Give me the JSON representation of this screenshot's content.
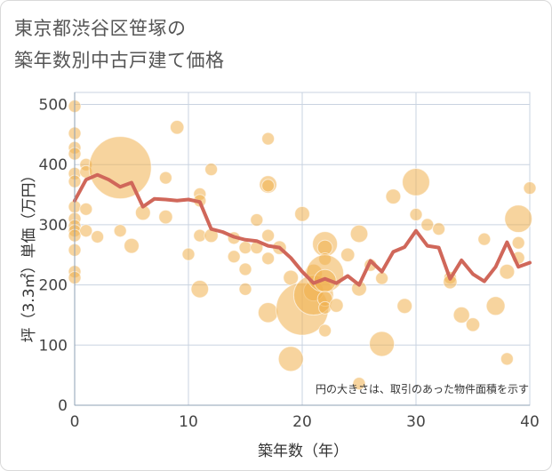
{
  "title": {
    "line1": "東京都渋谷区笹塚の",
    "line2": "築年数別中古戸建て価格"
  },
  "colors": {
    "bubble": "#f0b04f",
    "line": "#d0675a",
    "grid": "#c9d3e0",
    "axis": "#8ea0b5"
  },
  "chart_data": {
    "type": "scatter",
    "xlabel": "築年数（年）",
    "ylabel": "坪（3.3㎡）単価（万円）",
    "xlim": [
      0,
      40
    ],
    "ylim": [
      0,
      520
    ],
    "xticks": [
      0,
      10,
      20,
      30,
      40
    ],
    "yticks": [
      0,
      100,
      200,
      300,
      400,
      500
    ],
    "grid": true,
    "note": "円の大きさは、取引のあった物件面積を示す",
    "series": [
      {
        "kind": "bubble",
        "points": [
          {
            "x": 0,
            "y": 497,
            "s": 1
          },
          {
            "x": 0,
            "y": 452,
            "s": 1
          },
          {
            "x": 0,
            "y": 428,
            "s": 1
          },
          {
            "x": 0,
            "y": 418,
            "s": 1
          },
          {
            "x": 0,
            "y": 385,
            "s": 1
          },
          {
            "x": 0,
            "y": 372,
            "s": 1
          },
          {
            "x": 0,
            "y": 330,
            "s": 1
          },
          {
            "x": 0,
            "y": 310,
            "s": 1
          },
          {
            "x": 0,
            "y": 298,
            "s": 1
          },
          {
            "x": 0,
            "y": 290,
            "s": 1
          },
          {
            "x": 0,
            "y": 282,
            "s": 1
          },
          {
            "x": 0,
            "y": 258,
            "s": 1
          },
          {
            "x": 0,
            "y": 222,
            "s": 1
          },
          {
            "x": 0,
            "y": 212,
            "s": 1
          },
          {
            "x": 1,
            "y": 400,
            "s": 1
          },
          {
            "x": 1,
            "y": 388,
            "s": 1
          },
          {
            "x": 1,
            "y": 326,
            "s": 1
          },
          {
            "x": 1,
            "y": 290,
            "s": 1
          },
          {
            "x": 2,
            "y": 280,
            "s": 1
          },
          {
            "x": 4,
            "y": 395,
            "s": 5
          },
          {
            "x": 4,
            "y": 290,
            "s": 1
          },
          {
            "x": 5,
            "y": 265,
            "s": 1.2
          },
          {
            "x": 6,
            "y": 320,
            "s": 1.2
          },
          {
            "x": 8,
            "y": 378,
            "s": 1
          },
          {
            "x": 8,
            "y": 313,
            "s": 1.1
          },
          {
            "x": 9,
            "y": 462,
            "s": 1.1
          },
          {
            "x": 10,
            "y": 251,
            "s": 1
          },
          {
            "x": 11,
            "y": 351,
            "s": 1
          },
          {
            "x": 11,
            "y": 340,
            "s": 1
          },
          {
            "x": 11,
            "y": 282,
            "s": 1
          },
          {
            "x": 11,
            "y": 193,
            "s": 1.4
          },
          {
            "x": 12,
            "y": 392,
            "s": 1
          },
          {
            "x": 12,
            "y": 282,
            "s": 1.1
          },
          {
            "x": 14,
            "y": 278,
            "s": 1
          },
          {
            "x": 14,
            "y": 247,
            "s": 1
          },
          {
            "x": 15,
            "y": 262,
            "s": 1
          },
          {
            "x": 15,
            "y": 226,
            "s": 1
          },
          {
            "x": 15,
            "y": 193,
            "s": 1
          },
          {
            "x": 16,
            "y": 308,
            "s": 1
          },
          {
            "x": 16,
            "y": 262,
            "s": 1
          },
          {
            "x": 17,
            "y": 443,
            "s": 1
          },
          {
            "x": 17,
            "y": 367,
            "s": 1.4
          },
          {
            "x": 17,
            "y": 365,
            "s": 1
          },
          {
            "x": 17,
            "y": 282,
            "s": 1
          },
          {
            "x": 17,
            "y": 244,
            "s": 1
          },
          {
            "x": 17,
            "y": 154,
            "s": 1.6
          },
          {
            "x": 18,
            "y": 262,
            "s": 1.1
          },
          {
            "x": 19,
            "y": 212,
            "s": 1.2
          },
          {
            "x": 19,
            "y": 77,
            "s": 2
          },
          {
            "x": 20,
            "y": 318,
            "s": 1.2
          },
          {
            "x": 20,
            "y": 160,
            "s": 4.2
          },
          {
            "x": 21,
            "y": 220,
            "s": 1.4
          },
          {
            "x": 21,
            "y": 190,
            "s": 1.6
          },
          {
            "x": 21,
            "y": 183,
            "s": 3.2
          },
          {
            "x": 22,
            "y": 268,
            "s": 2
          },
          {
            "x": 22,
            "y": 262,
            "s": 1.2
          },
          {
            "x": 22,
            "y": 243,
            "s": 1
          },
          {
            "x": 22,
            "y": 219,
            "s": 3
          },
          {
            "x": 22,
            "y": 207,
            "s": 1.8
          },
          {
            "x": 22,
            "y": 177,
            "s": 1.2
          },
          {
            "x": 22,
            "y": 162,
            "s": 1
          },
          {
            "x": 22,
            "y": 124,
            "s": 1
          },
          {
            "x": 23,
            "y": 166,
            "s": 1.1
          },
          {
            "x": 24,
            "y": 250,
            "s": 1.1
          },
          {
            "x": 25,
            "y": 285,
            "s": 1.4
          },
          {
            "x": 25,
            "y": 194,
            "s": 1.2
          },
          {
            "x": 25,
            "y": 36,
            "s": 1
          },
          {
            "x": 26,
            "y": 233,
            "s": 1
          },
          {
            "x": 27,
            "y": 211,
            "s": 1
          },
          {
            "x": 27,
            "y": 102,
            "s": 2
          },
          {
            "x": 28,
            "y": 347,
            "s": 1.2
          },
          {
            "x": 29,
            "y": 165,
            "s": 1.2
          },
          {
            "x": 30,
            "y": 371,
            "s": 2.2
          },
          {
            "x": 30,
            "y": 317,
            "s": 1
          },
          {
            "x": 31,
            "y": 300,
            "s": 1
          },
          {
            "x": 32,
            "y": 293,
            "s": 1
          },
          {
            "x": 33,
            "y": 212,
            "s": 1
          },
          {
            "x": 33,
            "y": 205,
            "s": 1.1
          },
          {
            "x": 34,
            "y": 150,
            "s": 1.3
          },
          {
            "x": 35,
            "y": 134,
            "s": 1.1
          },
          {
            "x": 36,
            "y": 276,
            "s": 1
          },
          {
            "x": 37,
            "y": 165,
            "s": 1.5
          },
          {
            "x": 38,
            "y": 222,
            "s": 1.2
          },
          {
            "x": 38,
            "y": 77,
            "s": 1
          },
          {
            "x": 39,
            "y": 310,
            "s": 2.2
          },
          {
            "x": 39,
            "y": 270,
            "s": 1
          },
          {
            "x": 39,
            "y": 245,
            "s": 1
          },
          {
            "x": 40,
            "y": 361,
            "s": 1
          }
        ]
      },
      {
        "kind": "line",
        "x": [
          0,
          1,
          2,
          3,
          4,
          5,
          6,
          7,
          8,
          9,
          10,
          11,
          12,
          13,
          14,
          15,
          16,
          17,
          18,
          19,
          20,
          21,
          22,
          23,
          24,
          25,
          26,
          27,
          28,
          29,
          30,
          31,
          32,
          33,
          34,
          35,
          36,
          37,
          38,
          39,
          40
        ],
        "y": [
          340,
          375,
          383,
          375,
          363,
          370,
          330,
          343,
          342,
          340,
          342,
          338,
          293,
          288,
          280,
          275,
          273,
          265,
          262,
          245,
          222,
          203,
          210,
          203,
          215,
          200,
          240,
          222,
          255,
          263,
          290,
          265,
          262,
          210,
          241,
          218,
          206,
          230,
          271,
          230,
          237
        ]
      }
    ]
  }
}
